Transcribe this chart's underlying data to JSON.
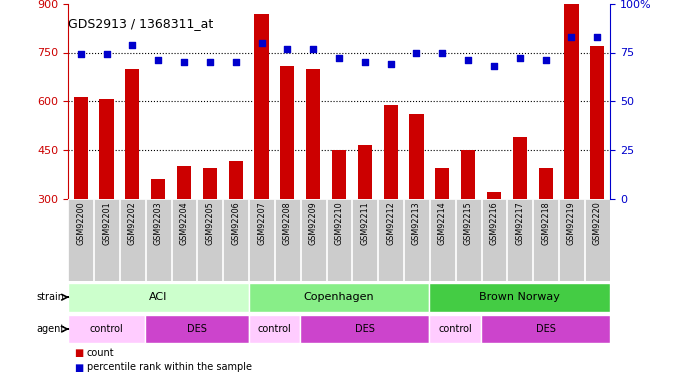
{
  "title": "GDS2913 / 1368311_at",
  "samples": [
    "GSM92200",
    "GSM92201",
    "GSM92202",
    "GSM92203",
    "GSM92204",
    "GSM92205",
    "GSM92206",
    "GSM92207",
    "GSM92208",
    "GSM92209",
    "GSM92210",
    "GSM92211",
    "GSM92212",
    "GSM92213",
    "GSM92214",
    "GSM92215",
    "GSM92216",
    "GSM92217",
    "GSM92218",
    "GSM92219",
    "GSM92220"
  ],
  "counts": [
    613,
    608,
    700,
    360,
    400,
    395,
    415,
    870,
    710,
    700,
    450,
    465,
    590,
    560,
    395,
    450,
    320,
    490,
    395,
    940,
    770
  ],
  "percentiles": [
    74,
    74,
    79,
    71,
    70,
    70,
    70,
    80,
    77,
    77,
    72,
    70,
    69,
    75,
    75,
    71,
    68,
    72,
    71,
    83,
    83
  ],
  "ylim_left": [
    300,
    900
  ],
  "ylim_right": [
    0,
    100
  ],
  "yticks_left": [
    300,
    450,
    600,
    750,
    900
  ],
  "yticks_right": [
    0,
    25,
    50,
    75,
    100
  ],
  "ytick_right_labels": [
    "0",
    "25",
    "50",
    "75",
    "100%"
  ],
  "bar_color": "#cc0000",
  "dot_color": "#0000cc",
  "strain_groups": [
    {
      "label": "ACI",
      "start": 0,
      "end": 7,
      "color": "#ccffcc"
    },
    {
      "label": "Copenhagen",
      "start": 7,
      "end": 14,
      "color": "#88ee88"
    },
    {
      "label": "Brown Norway",
      "start": 14,
      "end": 21,
      "color": "#44cc44"
    }
  ],
  "agent_groups": [
    {
      "label": "control",
      "start": 0,
      "end": 3,
      "color": "#ffccff"
    },
    {
      "label": "DES",
      "start": 3,
      "end": 7,
      "color": "#cc44cc"
    },
    {
      "label": "control",
      "start": 7,
      "end": 9,
      "color": "#ffccff"
    },
    {
      "label": "DES",
      "start": 9,
      "end": 14,
      "color": "#cc44cc"
    },
    {
      "label": "control",
      "start": 14,
      "end": 16,
      "color": "#ffccff"
    },
    {
      "label": "DES",
      "start": 16,
      "end": 21,
      "color": "#cc44cc"
    }
  ],
  "bg_color": "#ffffff",
  "label_box_color": "#cccccc",
  "gridline_ticks": [
    450,
    600,
    750
  ]
}
